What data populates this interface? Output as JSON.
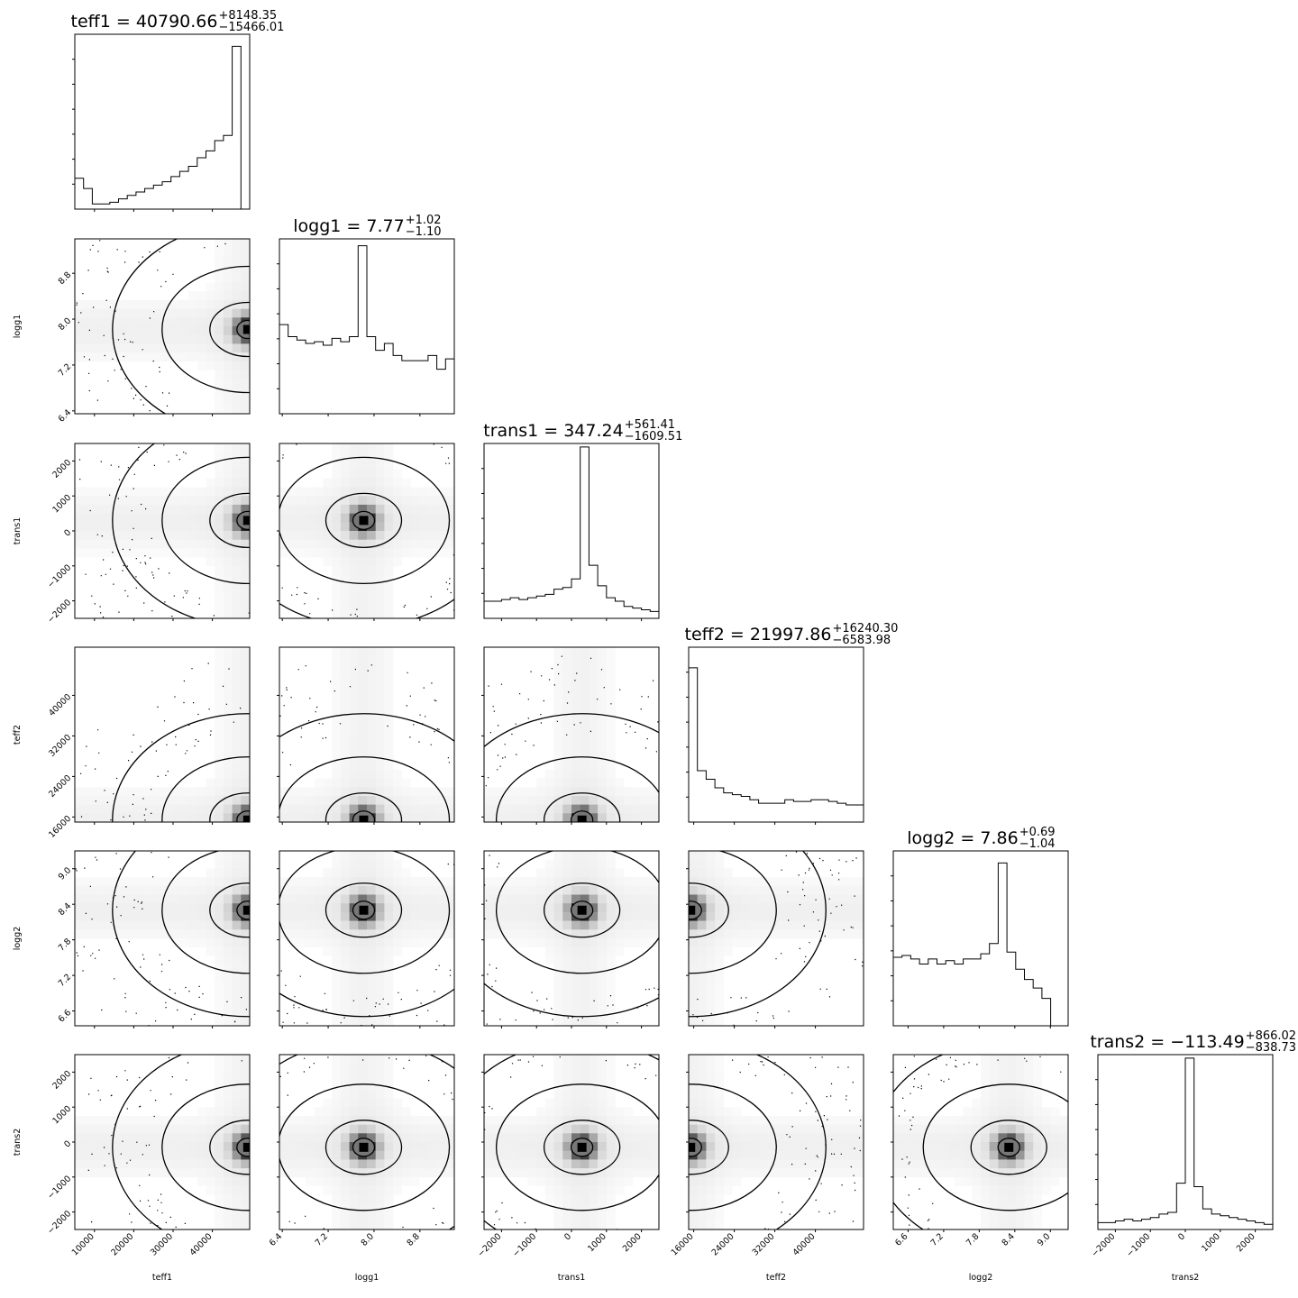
{
  "chart_data": {
    "type": "corner",
    "parameters": [
      {
        "name": "teff1",
        "label": "teff1",
        "range": [
          5000,
          49500
        ],
        "ticks": [
          10000,
          20000,
          30000,
          40000
        ],
        "title": {
          "main": "teff1 = 40790.66",
          "sup": "+8148.35",
          "sub": "−15466.01"
        },
        "hist": [
          0.18,
          0.12,
          0.03,
          0.03,
          0.04,
          0.06,
          0.08,
          0.1,
          0.12,
          0.14,
          0.16,
          0.19,
          0.22,
          0.25,
          0.3,
          0.34,
          0.4,
          0.43,
          0.95,
          0.0
        ]
      },
      {
        "name": "logg1",
        "label": "logg1",
        "range": [
          6.35,
          9.4
        ],
        "ticks": [
          6.4,
          7.2,
          8.0,
          8.8
        ],
        "tick_labels": [
          "6.4",
          "7.2",
          "8.0",
          "8.8"
        ],
        "title": {
          "main": "logg1 = 7.77",
          "sup": "+1.02",
          "sub": "−1.10"
        },
        "hist": [
          0.52,
          0.45,
          0.43,
          0.41,
          0.42,
          0.4,
          0.44,
          0.42,
          0.45,
          0.98,
          0.45,
          0.37,
          0.41,
          0.34,
          0.31,
          0.31,
          0.31,
          0.34,
          0.26,
          0.32
        ]
      },
      {
        "name": "trans1",
        "label": "trans1",
        "range": [
          -2500,
          2500
        ],
        "ticks": [
          -2000,
          -1000,
          0,
          1000,
          2000
        ],
        "tick_labels": [
          "−2000",
          "−1000",
          "0",
          "1000",
          "2000"
        ],
        "title": {
          "main": "trans1 = 347.24",
          "sup": "+561.41",
          "sub": "−1609.51"
        },
        "hist": [
          0.1,
          0.1,
          0.11,
          0.12,
          0.11,
          0.12,
          0.13,
          0.14,
          0.17,
          0.18,
          0.23,
          1.0,
          0.31,
          0.19,
          0.12,
          0.1,
          0.07,
          0.06,
          0.05,
          0.04
        ]
      },
      {
        "name": "teff2",
        "label": "teff2",
        "range": [
          15000,
          49500
        ],
        "ticks": [
          16000,
          24000,
          32000,
          40000
        ],
        "title": {
          "main": "teff2 = 21997.86",
          "sup": "+16240.30",
          "sub": "−6583.98"
        },
        "hist": [
          0.9,
          0.3,
          0.25,
          0.2,
          0.17,
          0.16,
          0.15,
          0.13,
          0.11,
          0.11,
          0.11,
          0.13,
          0.12,
          0.12,
          0.13,
          0.13,
          0.12,
          0.11,
          0.1,
          0.1
        ]
      },
      {
        "name": "logg2",
        "label": "logg2",
        "range": [
          6.35,
          9.3
        ],
        "ticks": [
          6.6,
          7.2,
          7.8,
          8.4,
          9.0
        ],
        "tick_labels": [
          "6.6",
          "7.2",
          "7.8",
          "8.4",
          "9.0"
        ],
        "title": {
          "main": "logg2 = 7.86",
          "sup": "+0.69",
          "sub": "−1.04"
        },
        "hist": [
          0.4,
          0.41,
          0.39,
          0.36,
          0.39,
          0.36,
          0.38,
          0.36,
          0.39,
          0.39,
          0.42,
          0.48,
          0.95,
          0.43,
          0.33,
          0.27,
          0.22,
          0.16,
          0.0,
          0.0
        ]
      },
      {
        "name": "trans2",
        "label": "trans2",
        "range": [
          -2500,
          2500
        ],
        "ticks": [
          -2000,
          -1000,
          0,
          1000,
          2000
        ],
        "tick_labels": [
          "−2000",
          "−1000",
          "0",
          "1000",
          "2000"
        ],
        "title": {
          "main": "trans2 = −113.49",
          "sup": "+866.02",
          "sub": "−838.73"
        },
        "hist": [
          0.04,
          0.04,
          0.05,
          0.06,
          0.05,
          0.06,
          0.07,
          0.09,
          0.1,
          0.27,
          1.0,
          0.25,
          0.12,
          0.09,
          0.08,
          0.07,
          0.06,
          0.05,
          0.04,
          0.03
        ]
      }
    ],
    "peaks": {
      "teff1": 49000,
      "logg1": 7.82,
      "trans1": 300,
      "teff2": 15400,
      "logg2": 8.3,
      "trans2": -150
    }
  }
}
